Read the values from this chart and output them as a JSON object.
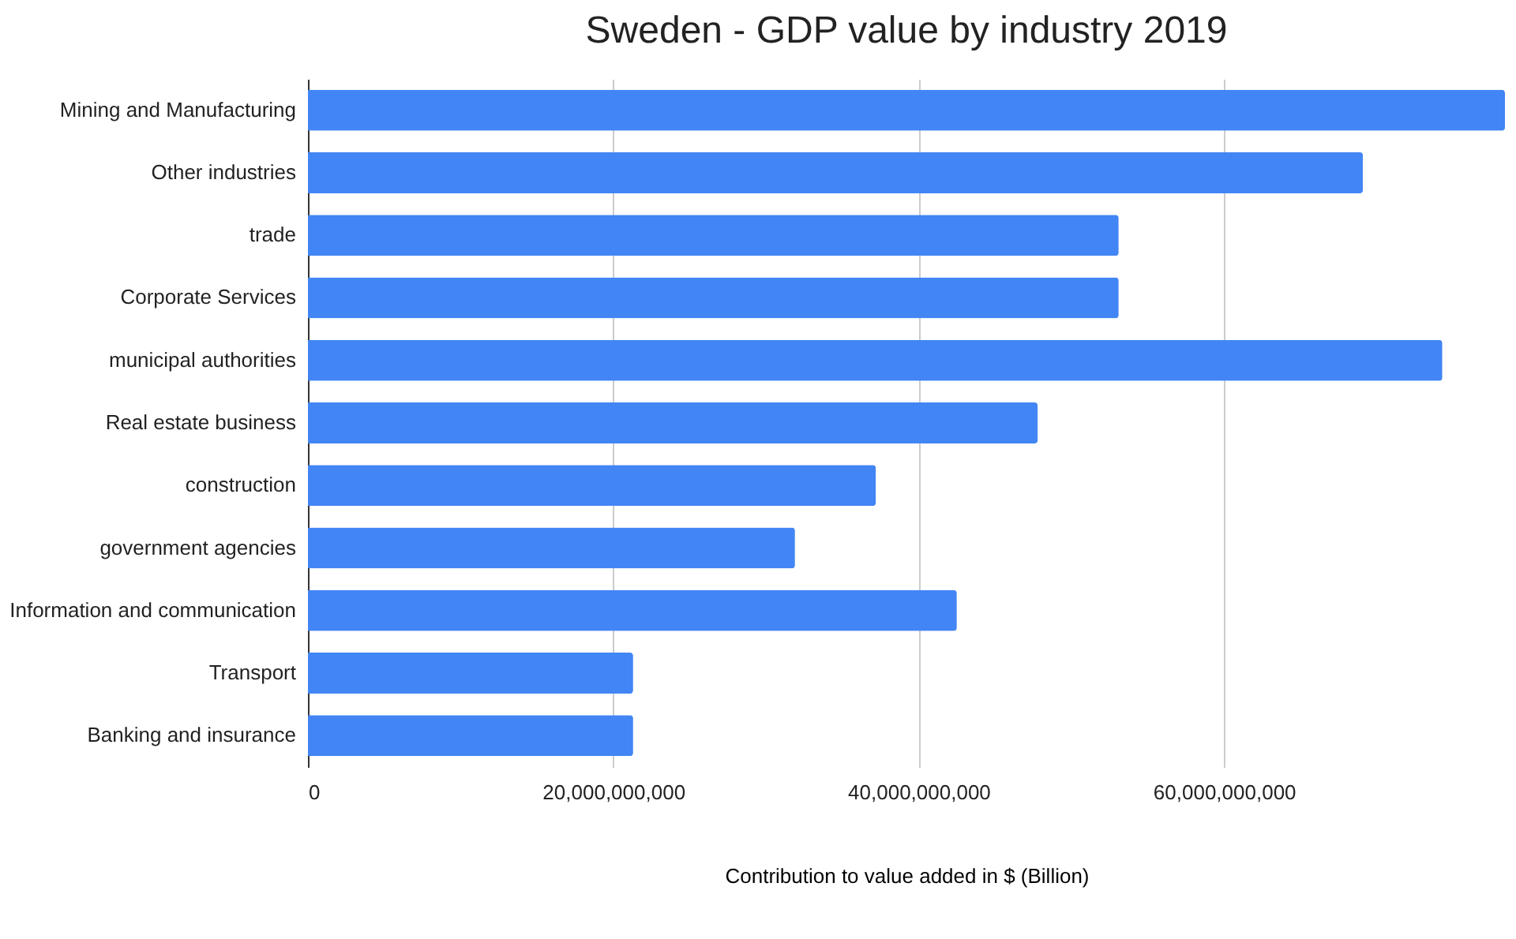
{
  "chart_data": {
    "type": "bar",
    "orientation": "horizontal",
    "title": "Sweden - GDP value by industry 2019",
    "xlabel": "Contribution to value added in $ (Billion)",
    "categories": [
      "Mining and Manufacturing",
      "Other industries",
      "trade",
      "Corporate Services",
      "municipal authorities",
      "Real estate business",
      "construction",
      "government agencies",
      "Information and communication",
      "Transport",
      "Banking and insurance"
    ],
    "values": [
      78400000000,
      69100000000,
      53100000000,
      53100000000,
      74300000000,
      47800000000,
      37200000000,
      31900000000,
      42500000000,
      21300000000,
      21300000000
    ],
    "color": "#4285f4",
    "xlim": [
      0,
      78400000000
    ],
    "xticks": [
      0,
      {
        "value": 20000000000,
        "label": "20,000,000,000"
      },
      {
        "value": 40000000000,
        "label": "40,000,000,000"
      },
      {
        "value": 60000000000,
        "label": "60,000,000,000"
      }
    ],
    "grid": "x"
  }
}
